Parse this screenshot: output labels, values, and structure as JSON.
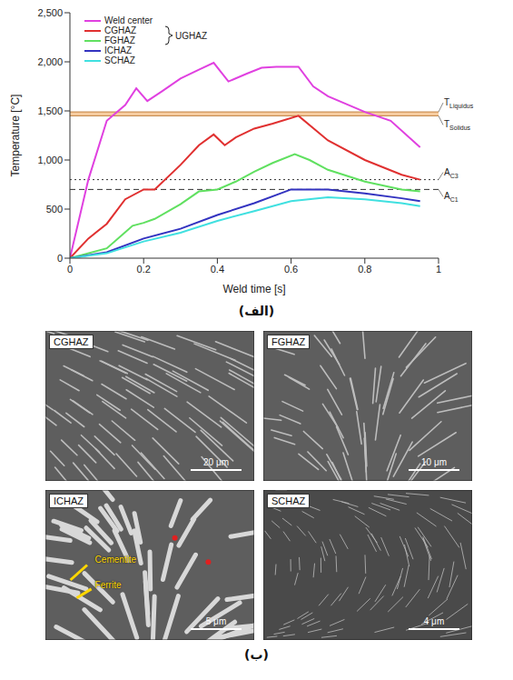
{
  "chart_data": {
    "type": "line",
    "x_label": "Weld time [s]",
    "y_label": "Temperature [°C]",
    "xlim": [
      0,
      1
    ],
    "xticks": [
      0,
      0.2,
      0.4,
      0.6,
      0.8,
      1
    ],
    "ylim": [
      0,
      2500
    ],
    "yticks": [
      0,
      500,
      {
        "value": 1000,
        "label": "1,000"
      },
      {
        "value": 1500,
        "label": "1,500"
      },
      {
        "value": 2000,
        "label": "2,000"
      },
      {
        "value": 2500,
        "label": "2,500"
      }
    ],
    "legend": "upper left",
    "series": [
      {
        "name": "Weld center",
        "color": "#e040e0",
        "x": [
          0,
          0.05,
          0.1,
          0.15,
          0.18,
          0.21,
          0.25,
          0.3,
          0.35,
          0.39,
          0.43,
          0.48,
          0.52,
          0.56,
          0.62,
          0.66,
          0.7,
          0.8,
          0.87,
          0.95
        ],
        "values": [
          0,
          800,
          1400,
          1560,
          1730,
          1600,
          1700,
          1830,
          1920,
          1990,
          1800,
          1880,
          1940,
          1950,
          1950,
          1750,
          1650,
          1490,
          1400,
          1130
        ]
      },
      {
        "name": "CGHAZ",
        "color": "#e03030",
        "x": [
          0,
          0.05,
          0.1,
          0.15,
          0.2,
          0.23,
          0.3,
          0.35,
          0.39,
          0.42,
          0.45,
          0.5,
          0.55,
          0.62,
          0.7,
          0.8,
          0.9,
          0.95
        ],
        "values": [
          0,
          200,
          350,
          600,
          700,
          700,
          950,
          1150,
          1260,
          1150,
          1230,
          1320,
          1370,
          1450,
          1200,
          1000,
          850,
          800
        ]
      },
      {
        "name": "FGHAZ",
        "color": "#60e060",
        "x": [
          0,
          0.1,
          0.17,
          0.2,
          0.23,
          0.3,
          0.35,
          0.4,
          0.45,
          0.5,
          0.55,
          0.61,
          0.65,
          0.7,
          0.8,
          0.9,
          0.95
        ],
        "values": [
          0,
          100,
          330,
          360,
          400,
          550,
          680,
          700,
          780,
          880,
          970,
          1060,
          1000,
          900,
          780,
          700,
          680
        ]
      },
      {
        "name": "ICHAZ",
        "color": "#3333c0",
        "x": [
          0,
          0.1,
          0.2,
          0.3,
          0.4,
          0.5,
          0.6,
          0.7,
          0.8,
          0.9,
          0.95
        ],
        "values": [
          0,
          60,
          200,
          300,
          440,
          560,
          700,
          700,
          660,
          610,
          580
        ]
      },
      {
        "name": "SCHAZ",
        "color": "#40e0e0",
        "x": [
          0,
          0.1,
          0.2,
          0.3,
          0.4,
          0.5,
          0.6,
          0.7,
          0.8,
          0.9,
          0.95
        ],
        "values": [
          0,
          50,
          170,
          260,
          380,
          480,
          580,
          620,
          600,
          560,
          530
        ]
      }
    ],
    "annotations": [
      {
        "text": "UGHAZ",
        "members": [
          "CGHAZ",
          "FGHAZ"
        ]
      }
    ],
    "band": [
      1450,
      1490
    ],
    "band_color": "#f5c08a",
    "reference_lines": [
      {
        "value": 1490,
        "label": "T",
        "subscript": "Liquidus",
        "color": "#c08040",
        "line_style": "solid"
      },
      {
        "value": 1450,
        "label": "T",
        "subscript": "Solidus",
        "color": "#c08040",
        "line_style": "solid"
      },
      {
        "value": 800,
        "label": "A",
        "subscript": "C3",
        "color": "#333333",
        "line_style": "dotted"
      },
      {
        "value": 700,
        "label": "A",
        "subscript": "C1",
        "color": "#333333",
        "line_style": "dashed"
      }
    ]
  },
  "panel_labels": {
    "a": "(الف)",
    "b": "(ب)"
  },
  "micrographs": [
    {
      "title": "CGHAZ",
      "scale_bar": "20 μm"
    },
    {
      "title": "FGHAZ",
      "scale_bar": "10 μm"
    },
    {
      "title": "ICHAZ",
      "scale_bar": "5 μm",
      "annotations": [
        "Cementite",
        "Ferrite"
      ]
    },
    {
      "title": "SCHAZ",
      "scale_bar": "4 μm"
    }
  ]
}
